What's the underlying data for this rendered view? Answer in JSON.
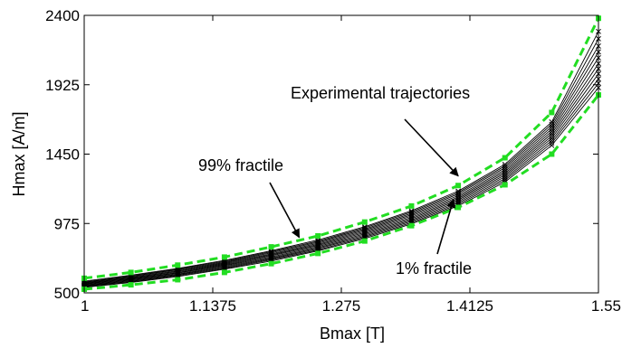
{
  "chart_data": {
    "type": "line",
    "title": "",
    "xlabel": "Bmax [T]",
    "ylabel": "Hmax [A/m]",
    "xlim": [
      1,
      1.55
    ],
    "ylim": [
      500,
      2400
    ],
    "xticks": [
      1,
      1.1375,
      1.275,
      1.4125,
      1.55
    ],
    "xtick_labels": [
      "1",
      "1.1375",
      "1.275",
      "1.4125",
      "1.55"
    ],
    "yticks": [
      500,
      975,
      1450,
      1925,
      2400
    ],
    "ytick_labels": [
      "500",
      "975",
      "1450",
      "1925",
      "2400"
    ],
    "grid": false,
    "legend": "none",
    "x": [
      1.0,
      1.05,
      1.1,
      1.15,
      1.2,
      1.25,
      1.3,
      1.35,
      1.4,
      1.45,
      1.5,
      1.55
    ],
    "series": [
      {
        "style": "fractile",
        "color": "#22dd22",
        "values": [
          600,
          640,
          690,
          745,
          815,
          890,
          985,
          1095,
          1235,
          1425,
          1735,
          2380
        ]
      },
      {
        "style": "fractile",
        "color": "#22dd22",
        "values": [
          525,
          555,
          590,
          640,
          700,
          770,
          855,
          960,
          1085,
          1240,
          1450,
          1855
        ]
      },
      {
        "style": "experimental",
        "color": "#000000",
        "values": [
          580,
          621,
          668,
          722,
          788,
          862,
          953,
          1062,
          1197,
          1380,
          1670,
          2290
        ]
      },
      {
        "style": "experimental",
        "color": "#000000",
        "values": [
          575,
          616,
          663,
          716,
          781,
          854,
          945,
          1053,
          1187,
          1368,
          1654,
          2240
        ]
      },
      {
        "style": "experimental",
        "color": "#000000",
        "values": [
          570,
          611,
          657,
          710,
          774,
          847,
          937,
          1044,
          1177,
          1356,
          1638,
          2190
        ]
      },
      {
        "style": "experimental",
        "color": "#000000",
        "values": [
          566,
          606,
          651,
          704,
          767,
          839,
          929,
          1035,
          1166,
          1343,
          1622,
          2150
        ]
      },
      {
        "style": "experimental",
        "color": "#000000",
        "values": [
          562,
          601,
          646,
          698,
          760,
          832,
          921,
          1026,
          1156,
          1331,
          1606,
          2110
        ]
      },
      {
        "style": "experimental",
        "color": "#000000",
        "values": [
          558,
          596,
          640,
          692,
          753,
          824,
          913,
          1017,
          1146,
          1319,
          1590,
          2070
        ]
      },
      {
        "style": "experimental",
        "color": "#000000",
        "values": [
          554,
          591,
          635,
          686,
          746,
          817,
          904,
          1008,
          1136,
          1307,
          1574,
          2035
        ]
      },
      {
        "style": "experimental",
        "color": "#000000",
        "values": [
          550,
          586,
          629,
          680,
          739,
          809,
          896,
          999,
          1126,
          1295,
          1558,
          2000
        ]
      },
      {
        "style": "experimental",
        "color": "#000000",
        "values": [
          546,
          581,
          624,
          674,
          732,
          802,
          888,
          990,
          1116,
          1283,
          1542,
          1965
        ]
      },
      {
        "style": "experimental",
        "color": "#000000",
        "values": [
          542,
          576,
          618,
          668,
          725,
          794,
          880,
          981,
          1106,
          1271,
          1526,
          1935
        ]
      },
      {
        "style": "experimental",
        "color": "#000000",
        "values": [
          538,
          571,
          612,
          662,
          718,
          787,
          872,
          972,
          1096,
          1259,
          1510,
          1905
        ]
      }
    ],
    "annotations": [
      {
        "text": "Experimental trajectories",
        "arrow_to": [
          1.4,
          1300
        ]
      },
      {
        "text": "99% fractile",
        "arrow_to": [
          1.23,
          880
        ]
      },
      {
        "text": "1% fractile",
        "arrow_to": [
          1.395,
          1140
        ]
      }
    ]
  }
}
